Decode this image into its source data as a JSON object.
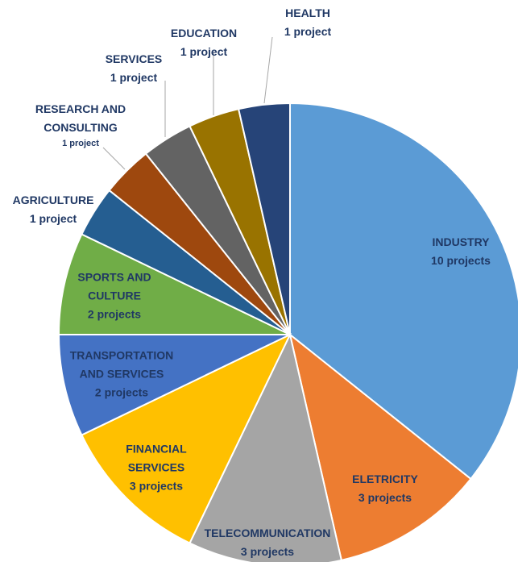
{
  "chart_data": {
    "type": "pie",
    "categories": [
      "INDUSTRY",
      "ELETRICITY",
      "TELECOMMUNICATION",
      "FINANCIAL SERVICES",
      "TRANSPORTATION AND SERVICES",
      "SPORTS AND CULTURE",
      "AGRICULTURE",
      "RESEARCH AND CONSULTING",
      "SERVICES",
      "EDUCATION",
      "HEALTH"
    ],
    "values": [
      10,
      3,
      3,
      3,
      2,
      2,
      1,
      1,
      1,
      1,
      1
    ],
    "value_labels": [
      "10 projects",
      "3 projects",
      "3 projects",
      "3 projects",
      "2 projects",
      "2 projects",
      "1 project",
      "1 project",
      "1 project",
      "1 project",
      "1 project"
    ],
    "colors": [
      "#5b9bd5",
      "#ed7d31",
      "#a5a5a5",
      "#ffc000",
      "#4472c4",
      "#70ad47",
      "#255e91",
      "#9e480e",
      "#636363",
      "#997300",
      "#264478"
    ]
  }
}
